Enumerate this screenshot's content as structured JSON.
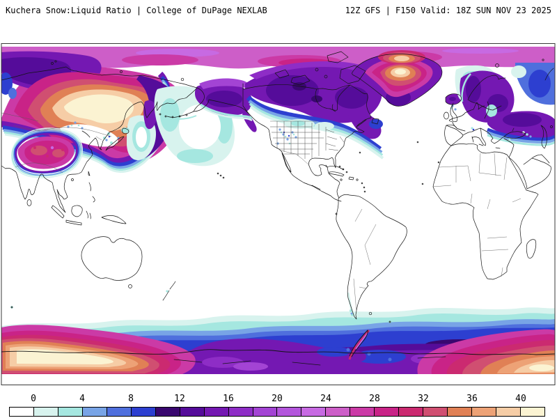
{
  "header": {
    "left_title": "Kuchera Snow:Liquid Ratio | College of DuPage NEXLAB",
    "right_title": "12Z GFS | F150 Valid: 18Z SUN NOV 23 2025"
  },
  "map": {
    "background": "#ffffff",
    "frame_color": "#3a3a3a",
    "coastline_color": "#141414",
    "border_color": "#5a5a5a"
  },
  "colorbar": {
    "tick_labels": [
      "0",
      "4",
      "8",
      "12",
      "16",
      "20",
      "24",
      "28",
      "32",
      "36",
      "40"
    ],
    "colors": [
      "#ffffff",
      "#d8f3ee",
      "#a5e7e0",
      "#78a4e6",
      "#4f6fdd",
      "#2d3fd0",
      "#39076f",
      "#550c9a",
      "#7418b2",
      "#8e2dc6",
      "#a344d4",
      "#b356dc",
      "#c76ae2",
      "#cd5ec8",
      "#cb3aa6",
      "#c92387",
      "#cb2a70",
      "#d04f71",
      "#e08055",
      "#eda276",
      "#f6cda6",
      "#fbf3d2"
    ]
  },
  "chart_data": {
    "type": "heatmap",
    "title": "Kuchera Snow:Liquid Ratio",
    "source": "College of DuPage NEXLAB",
    "model_run": "12Z GFS",
    "forecast_hour": "F150",
    "valid_time": "18Z SUN NOV 23 2025",
    "legend_position": "bottom",
    "colorbar_ticks": [
      0,
      4,
      8,
      12,
      16,
      20,
      24,
      28,
      32,
      36,
      40
    ],
    "colorbar_cell_width_value": 2,
    "colorbar_range": [
      -2,
      42
    ]
  }
}
